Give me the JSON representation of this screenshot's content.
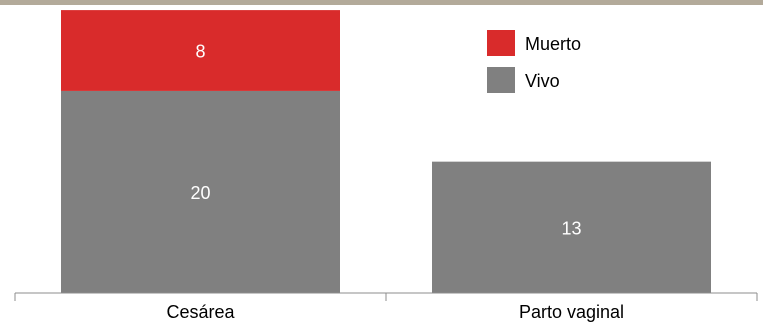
{
  "chart_data": {
    "type": "bar",
    "stacked": true,
    "categories": [
      "Cesárea",
      "Parto vaginal"
    ],
    "series": [
      {
        "name": "Vivo",
        "values": [
          20,
          13
        ]
      },
      {
        "name": "Muerto",
        "values": [
          8,
          null
        ]
      }
    ],
    "data_labels": [
      [
        "20",
        "13"
      ],
      [
        "8",
        ""
      ]
    ],
    "ylim": [
      0,
      29
    ],
    "legend_position": "top-right",
    "grid": false,
    "colors": {
      "Vivo": "#808080",
      "Muerto": "#d92b2b",
      "top_rule": "#b3aa9a",
      "axis": "#8c8c8c"
    }
  }
}
